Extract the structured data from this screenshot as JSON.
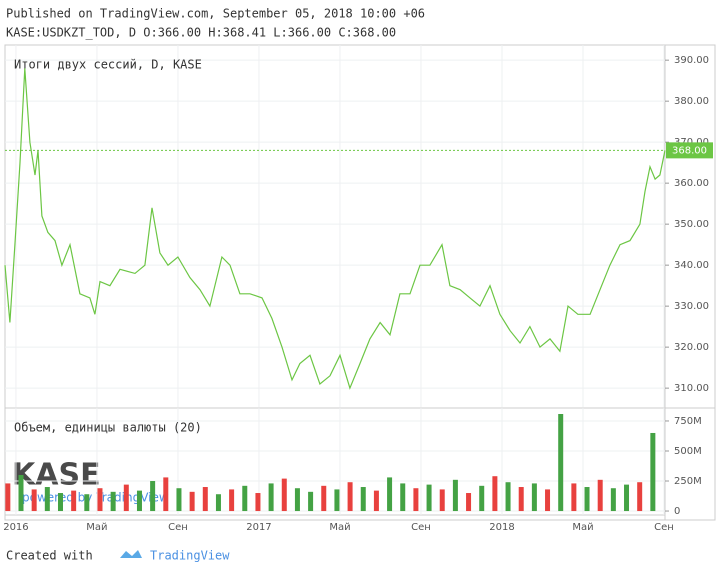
{
  "header": {
    "published": "Published on TradingView.com, September 05, 2018 10:00 +06",
    "ohlc": "KASE:USDKZT_TOD, D O:366.00 H:368.41 L:366.00 C:368.00"
  },
  "watermark": {
    "logo": "KASE",
    "powered": "powered by TradingView"
  },
  "footer": {
    "created": "Created with",
    "brand": "TradingView"
  },
  "chart_data": [
    {
      "type": "line",
      "title": "Итоги двух сессий, D, KASE",
      "color": "#6cc644",
      "x": [
        -0.54,
        -0.3,
        -0.05,
        0.2,
        0.44,
        0.69,
        0.94,
        1.09,
        1.28,
        1.58,
        1.93,
        2.27,
        2.67,
        3.16,
        3.65,
        3.9,
        4.15,
        4.64,
        5.14,
        5.88,
        6.37,
        6.72,
        7.11,
        7.51,
        8.0,
        8.59,
        9.09,
        9.58,
        10.17,
        10.57,
        11.06,
        11.56,
        12.15,
        12.64,
        13.14,
        13.63,
        14.02,
        14.52,
        15.01,
        15.51,
        16.0,
        16.49,
        16.99,
        17.48,
        17.98,
        18.47,
        18.96,
        19.46,
        19.95,
        20.44,
        21.04,
        21.43,
        21.93,
        22.42,
        22.91,
        23.41,
        23.9,
        24.4,
        24.89,
        25.38,
        25.88,
        26.37,
        26.86,
        27.26,
        27.75,
        28.35,
        28.84,
        29.33,
        29.83,
        30.32,
        30.81,
        31.06,
        31.31,
        31.56,
        31.8,
        32.05
      ],
      "values": [
        340,
        326,
        345,
        365,
        388,
        370,
        362,
        368,
        352,
        348,
        346,
        340,
        345,
        333,
        332,
        328,
        336,
        335,
        339,
        338,
        340,
        354,
        343,
        340,
        342,
        337,
        334,
        330,
        342,
        340,
        333,
        333,
        332,
        327,
        320,
        312,
        316,
        318,
        311,
        313,
        318,
        310,
        316,
        322,
        326,
        323,
        333,
        333,
        340,
        340,
        345,
        335,
        334,
        332,
        330,
        335,
        328,
        324,
        321,
        325,
        320,
        322,
        319,
        330,
        328,
        328,
        334,
        340,
        345,
        346,
        350,
        358,
        364,
        361,
        362,
        368
      ],
      "last": {
        "value": 368,
        "label": "368.00"
      },
      "xlim": [
        -0.54,
        32.05
      ],
      "ylim": [
        305.4,
        393.7
      ],
      "yticks": [
        {
          "value": 310,
          "label": "310.00"
        },
        {
          "value": 320,
          "label": "320.00"
        },
        {
          "value": 330,
          "label": "330.00"
        },
        {
          "value": 340,
          "label": "340.00"
        },
        {
          "value": 350,
          "label": "350.00"
        },
        {
          "value": 360,
          "label": "360.00"
        },
        {
          "value": 370,
          "label": "370.00"
        },
        {
          "value": 380,
          "label": "380.00"
        },
        {
          "value": 390,
          "label": "390.00"
        }
      ],
      "grid": true
    },
    {
      "type": "bar",
      "title": "Объем, единицы валюты (20)",
      "x": [
        -0.4,
        0.25,
        0.9,
        1.55,
        2.2,
        2.85,
        3.5,
        4.15,
        4.8,
        5.45,
        6.1,
        6.75,
        7.4,
        8.05,
        8.7,
        9.35,
        10.0,
        10.65,
        11.3,
        11.95,
        12.6,
        13.25,
        13.9,
        14.55,
        15.2,
        15.85,
        16.5,
        17.15,
        17.8,
        18.45,
        19.1,
        19.75,
        20.4,
        21.05,
        21.7,
        22.35,
        23.0,
        23.65,
        24.3,
        24.95,
        25.6,
        26.25,
        26.9,
        27.55,
        28.2,
        28.85,
        29.5,
        30.15,
        30.8,
        31.45
      ],
      "values": [
        230,
        300,
        180,
        200,
        150,
        170,
        140,
        190,
        160,
        220,
        170,
        250,
        280,
        190,
        160,
        200,
        140,
        180,
        210,
        150,
        230,
        270,
        190,
        160,
        210,
        180,
        240,
        200,
        170,
        280,
        230,
        190,
        220,
        180,
        260,
        150,
        210,
        290,
        240,
        200,
        230,
        180,
        808,
        230,
        200,
        260,
        190,
        220,
        240,
        650
      ],
      "colors": [
        "#e8413e",
        "#44a244",
        "#e8413e",
        "#44a244",
        "#44a244",
        "#e8413e",
        "#44a244",
        "#e8413e",
        "#44a244",
        "#e8413e",
        "#44a244",
        "#44a244",
        "#e8413e",
        "#44a244",
        "#e8413e",
        "#e8413e",
        "#44a244",
        "#e8413e",
        "#44a244",
        "#e8413e",
        "#44a244",
        "#e8413e",
        "#44a244",
        "#44a244",
        "#e8413e",
        "#44a244",
        "#e8413e",
        "#44a244",
        "#e8413e",
        "#44a244",
        "#44a244",
        "#e8413e",
        "#44a244",
        "#e8413e",
        "#44a244",
        "#e8413e",
        "#44a244",
        "#e8413e",
        "#44a244",
        "#e8413e",
        "#44a244",
        "#e8413e",
        "#44a244",
        "#e8413e",
        "#44a244",
        "#e8413e",
        "#44a244",
        "#44a244",
        "#e8413e",
        "#44a244"
      ],
      "xlim": [
        -0.54,
        32.05
      ],
      "ylim": [
        -33,
        858
      ],
      "yticks": [
        {
          "value": 0,
          "label": "0"
        },
        {
          "value": 250,
          "label": "250M"
        },
        {
          "value": 500,
          "label": "500M"
        },
        {
          "value": 750,
          "label": "750M"
        }
      ],
      "xticks": [
        {
          "value": 0,
          "label": "2016"
        },
        {
          "value": 4,
          "label": "Май"
        },
        {
          "value": 8,
          "label": "Сен"
        },
        {
          "value": 12,
          "label": "2017"
        },
        {
          "value": 16,
          "label": "Май"
        },
        {
          "value": 20,
          "label": "Сен"
        },
        {
          "value": 24,
          "label": "2018"
        },
        {
          "value": 28,
          "label": "Май"
        },
        {
          "value": 32,
          "label": "Сен"
        }
      ],
      "grid": true
    }
  ]
}
